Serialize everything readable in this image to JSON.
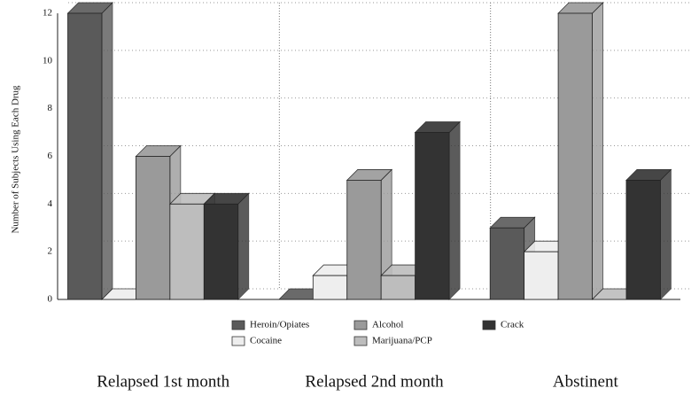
{
  "chart_data": {
    "type": "bar3d",
    "y_label": "Number of Subjects Using Each Drug",
    "categories": [
      "Relapsed 1st month",
      "Relapsed 2nd month",
      "Abstinent"
    ],
    "series": [
      {
        "name": "Heroin/Opiates",
        "color": "#5a5a5a",
        "values": [
          12,
          0,
          3
        ]
      },
      {
        "name": "Cocaine",
        "color": "#eeeeee",
        "values": [
          0,
          1,
          2
        ]
      },
      {
        "name": "Alcohol",
        "color": "#9a9a9a",
        "values": [
          6,
          5,
          12
        ]
      },
      {
        "name": "Marijuana/PCP",
        "color": "#bdbdbd",
        "values": [
          4,
          1,
          0
        ]
      },
      {
        "name": "Crack",
        "color": "#333333",
        "values": [
          4,
          7,
          5
        ]
      }
    ],
    "ylim": [
      0,
      12
    ],
    "yticks": [
      0,
      2,
      4,
      6,
      8,
      10,
      12
    ],
    "grid": true
  }
}
